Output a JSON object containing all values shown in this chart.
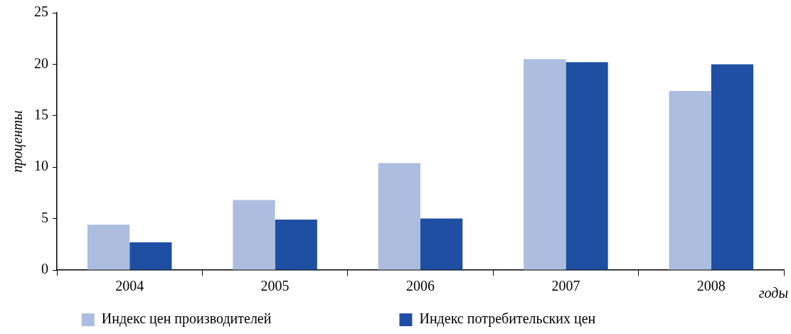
{
  "chart_data": {
    "type": "bar",
    "ylabel": "проценты",
    "xlabel": "годы",
    "categories": [
      "2004",
      "2005",
      "2006",
      "2007",
      "2008"
    ],
    "series": [
      {
        "name": "Индекс цен производителей",
        "color": "#adbde0",
        "values": [
          4.4,
          6.8,
          10.4,
          20.5,
          17.4
        ]
      },
      {
        "name": "Индекс потребительских цен",
        "color": "#1f4fa3",
        "values": [
          2.7,
          4.9,
          5.0,
          20.2,
          20.0
        ]
      }
    ],
    "ylim": [
      0,
      25
    ],
    "yticks": [
      0,
      5,
      10,
      15,
      20,
      25
    ],
    "grid": false,
    "legend": "bottom"
  }
}
